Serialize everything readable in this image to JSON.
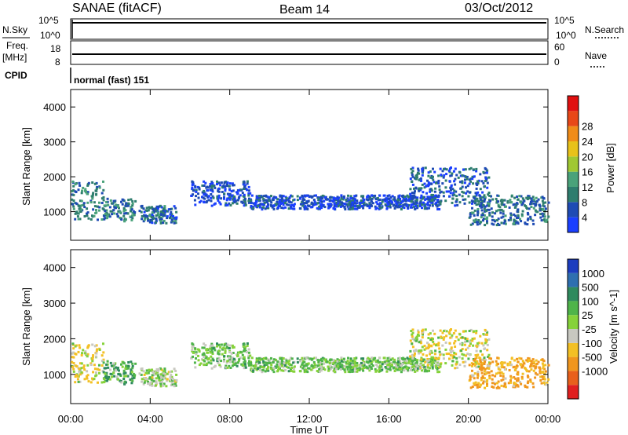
{
  "header": {
    "station": "SANAE (fitACF)",
    "beam": "Beam 14",
    "date": "03/Oct/2012"
  },
  "strips": {
    "nsky": {
      "label": "N.Sky",
      "ticks": [
        "10^5",
        "10^0"
      ],
      "right_ticks": [
        "10^5",
        "10^0"
      ],
      "right_label": "N.Search"
    },
    "freq": {
      "label_line1": "Freq.",
      "label_line2": "[MHz]",
      "ticks": [
        "18",
        "8"
      ],
      "right_ticks": [
        "60",
        "0"
      ],
      "right_label": "Nave"
    },
    "cpid": {
      "label": "CPID",
      "mode_text": "normal (fast) 151"
    }
  },
  "x_axis": {
    "ticks": [
      "00:00",
      "04:00",
      "08:00",
      "12:00",
      "16:00",
      "20:00",
      "00:00"
    ],
    "label": "Time UT"
  },
  "power_panel": {
    "ylabel": "Slant Range [km]",
    "yticks": [
      "1000",
      "2000",
      "3000",
      "4000"
    ],
    "colorbar_label": "Power [dB]",
    "colorbar_ticks": [
      "4",
      "8",
      "12",
      "16",
      "20",
      "24",
      "28"
    ],
    "colors": [
      "#1a3fff",
      "#1e4bb4",
      "#2e7d6e",
      "#4aa27a",
      "#a0c832",
      "#e8c21a",
      "#f08c18",
      "#e84818",
      "#e01010"
    ]
  },
  "velocity_panel": {
    "ylabel": "Slant Range [km]",
    "yticks": [
      "1000",
      "2000",
      "3000",
      "4000"
    ],
    "colorbar_label": "Velocity [m s^-1]",
    "colorbar_ticks": [
      "1000",
      "500",
      "100",
      "25",
      "-25",
      "-100",
      "-500",
      "-1000"
    ],
    "colors": [
      "#1c3dbf",
      "#2e6fb0",
      "#2f8a5e",
      "#4fb44a",
      "#86d23a",
      "#c8c8c0",
      "#f3c024",
      "#f0961e",
      "#e8601c",
      "#e02020"
    ]
  },
  "chart_data": {
    "type": "heatmap",
    "x_range_hours": [
      0,
      24
    ],
    "y_range_km": [
      180,
      4500
    ],
    "panels": [
      "Power [dB]",
      "Velocity [m s^-1]"
    ],
    "echo_regions": [
      {
        "t_start": 0.0,
        "t_end": 1.6,
        "r_min": 800,
        "r_max": 1900,
        "power": 10,
        "velocity": -100
      },
      {
        "t_start": 1.6,
        "t_end": 3.2,
        "r_min": 750,
        "r_max": 1400,
        "power": 10,
        "velocity": 100
      },
      {
        "t_start": 3.4,
        "t_end": 5.3,
        "r_min": 700,
        "r_max": 1200,
        "power": 8,
        "velocity": -25
      },
      {
        "t_start": 6.0,
        "t_end": 9.0,
        "r_min": 1200,
        "r_max": 1900,
        "power": 5,
        "velocity": 25
      },
      {
        "t_start": 9.0,
        "t_end": 15.0,
        "r_min": 1100,
        "r_max": 1500,
        "power": 5,
        "velocity": 25
      },
      {
        "t_start": 15.0,
        "t_end": 18.5,
        "r_min": 1100,
        "r_max": 1500,
        "power": 5,
        "velocity": 25
      },
      {
        "t_start": 17.0,
        "t_end": 21.0,
        "r_min": 1200,
        "r_max": 2300,
        "power": 6,
        "velocity": -100
      },
      {
        "t_start": 20.0,
        "t_end": 24.0,
        "r_min": 650,
        "r_max": 1500,
        "power": 9,
        "velocity": -500
      }
    ]
  }
}
